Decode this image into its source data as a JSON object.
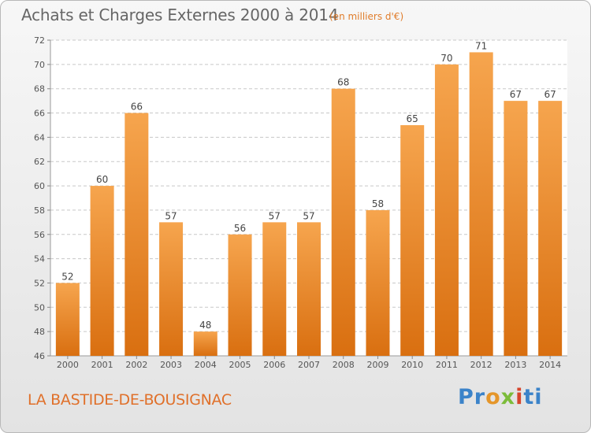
{
  "title": "Achats et Charges Externes 2000 à 2014",
  "subtitle": "(en milliers d'€)",
  "commune": "LA BASTIDE-DE-BOUSIGNAC",
  "logo": {
    "p1": "Pr",
    "p2": "o",
    "p3": "x",
    "p4": "i",
    "p5": "ti"
  },
  "colors": {
    "bar_top": "#f6a54e",
    "bar_bottom": "#d96f10",
    "label_color": "#e0702a"
  },
  "chart_data": {
    "type": "bar",
    "categories": [
      "2000",
      "2001",
      "2002",
      "2003",
      "2004",
      "2005",
      "2006",
      "2007",
      "2008",
      "2009",
      "2010",
      "2011",
      "2012",
      "2013",
      "2014"
    ],
    "values": [
      52,
      60,
      66,
      57,
      48,
      56,
      57,
      57,
      68,
      58,
      65,
      70,
      71,
      67,
      67
    ],
    "ylim": [
      46,
      72
    ],
    "yticks": [
      46,
      48,
      50,
      52,
      54,
      56,
      58,
      60,
      62,
      64,
      66,
      68,
      70,
      72
    ],
    "grid": true
  }
}
